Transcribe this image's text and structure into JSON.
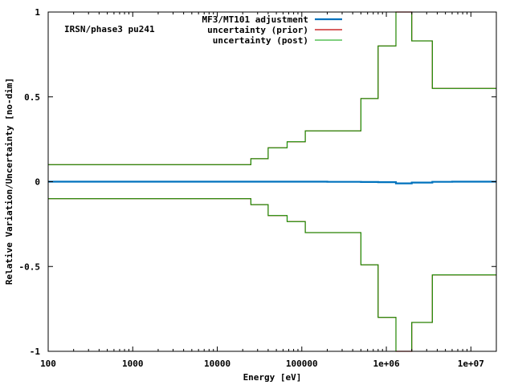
{
  "chart_data": {
    "type": "line",
    "annotation": "IRSN/phase3 pu241",
    "xlabel": "Energy [eV]",
    "ylabel": "Relative Variation/Uncertainty [no-dim]",
    "xscale": "log",
    "xlim": [
      100,
      20000000
    ],
    "ylim": [
      -1,
      1
    ],
    "grid": false,
    "legend_position": "top-right",
    "x_ticks": [
      {
        "value": 100,
        "label": "100"
      },
      {
        "value": 1000,
        "label": "1000"
      },
      {
        "value": 10000,
        "label": "10000"
      },
      {
        "value": 100000,
        "label": "100000"
      },
      {
        "value": 1000000,
        "label": "1e+06"
      },
      {
        "value": 10000000,
        "label": "1e+07"
      }
    ],
    "y_ticks": [
      {
        "value": -1,
        "label": "-1"
      },
      {
        "value": -0.5,
        "label": "-0.5"
      },
      {
        "value": 0,
        "label": "0"
      },
      {
        "value": 0.5,
        "label": "0.5"
      },
      {
        "value": 1,
        "label": "1"
      }
    ],
    "series": [
      {
        "name": "MF3/MT101 adjustment",
        "color": "#0072bd",
        "style": "step",
        "mirror": false,
        "x": [
          100,
          110000,
          200000,
          500000,
          800000,
          1300000,
          2000000,
          3500000,
          6000000,
          20000000
        ],
        "y": [
          0.0,
          0.0,
          -0.001,
          -0.002,
          -0.003,
          -0.01,
          -0.005,
          -0.001,
          0.0,
          0.0
        ]
      },
      {
        "name": "uncertainty (prior)",
        "color": "#c00000",
        "style": "step",
        "mirror": true,
        "x": [
          100,
          25000,
          40000,
          67000,
          110000,
          500000,
          800000,
          1300000,
          2000000,
          3500000,
          6000000,
          20000000
        ],
        "y": [
          0.1,
          0.135,
          0.2,
          0.235,
          0.3,
          0.49,
          0.8,
          1.0,
          0.83,
          0.55,
          0.55,
          0.55
        ]
      },
      {
        "name": "uncertainty (post)",
        "color": "#00a000",
        "style": "step",
        "mirror": true,
        "x": [
          100,
          25000,
          40000,
          67000,
          110000,
          500000,
          800000,
          1300000,
          2000000,
          3500000,
          6000000,
          20000000
        ],
        "y": [
          0.1,
          0.135,
          0.2,
          0.235,
          0.3,
          0.49,
          0.8,
          1.0,
          0.83,
          0.55,
          0.55,
          0.55
        ]
      }
    ]
  }
}
